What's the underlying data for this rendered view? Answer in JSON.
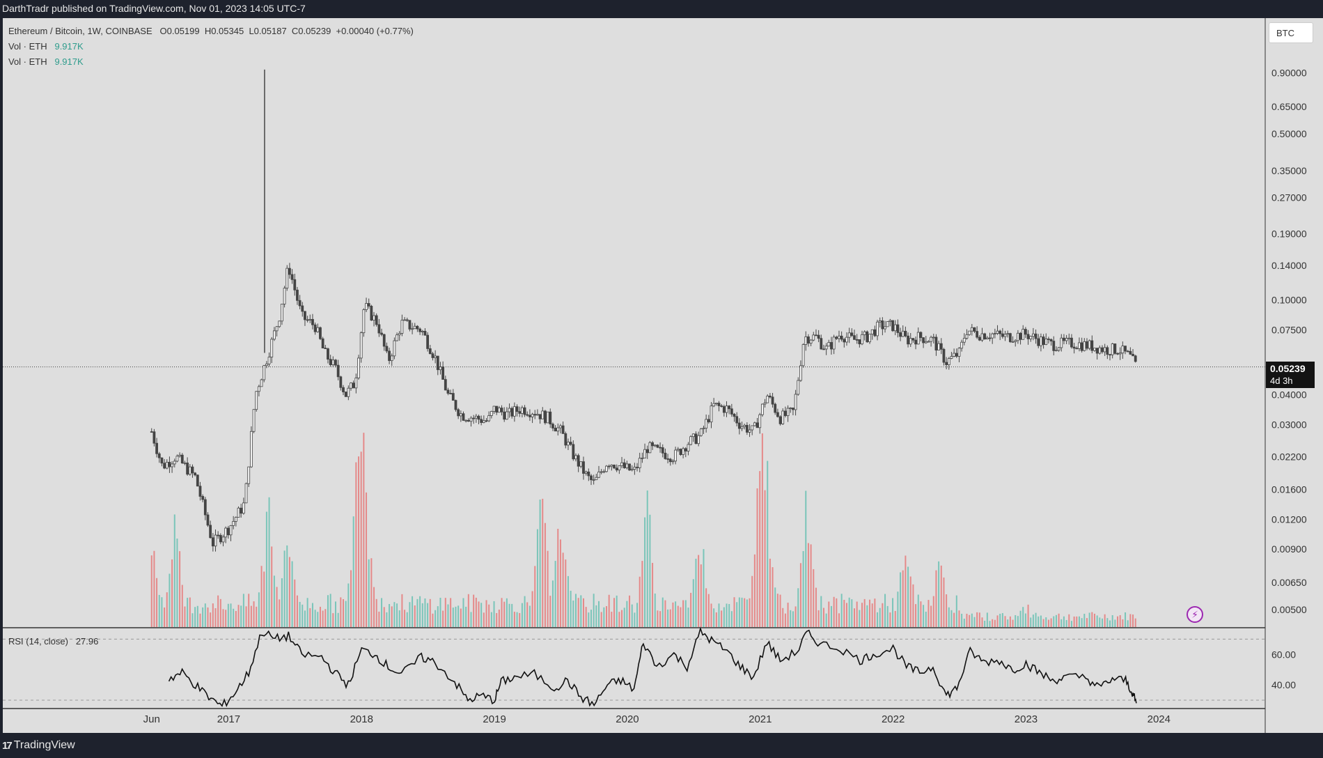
{
  "header": {
    "publisher_text": "DarthTradr published on TradingView.com, Nov 01, 2023 14:05 UTC-7"
  },
  "footer": {
    "brand_logo": "17",
    "brand_name": "TradingView"
  },
  "legend": {
    "symbol_line": "Ethereum / Bitcoin, 1W, COINBASE",
    "ohlc": {
      "open": "O0.05199",
      "high": "H0.05345",
      "low": "L0.05187",
      "close": "C0.05239",
      "change": "+0.00040 (+0.77%)"
    },
    "vol_label": "Vol · ETH",
    "vol_value": "9.917K",
    "vol2_label": "Vol · ETH",
    "vol2_value": "9.917K",
    "rsi_label": "RSI (14, close)",
    "rsi_value": "27.96"
  },
  "price_scale_button": "BTC",
  "last_price": {
    "value": "0.05239",
    "countdown": "4d 3h"
  },
  "colors": {
    "chart_bg": "#dedede",
    "candle": "#444444",
    "vol_up": "#6fc2b5",
    "vol_down": "#e57f7f",
    "rsi_line": "#111111",
    "frame": "#1e222d",
    "alert": "#9c27b0"
  },
  "chart_data": [
    {
      "type": "candlestick",
      "title": "Ethereum / Bitcoin, 1W, COINBASE",
      "x_axis_labels": [
        "Jun",
        "2017",
        "2018",
        "2019",
        "2020",
        "2021",
        "2022",
        "2023",
        "2024"
      ],
      "y_scale": "log",
      "y_tick_labels": [
        "0.90000",
        "0.65000",
        "0.50000",
        "0.35000",
        "0.27000",
        "0.19000",
        "0.14000",
        "0.10000",
        "0.07500",
        "0.05239",
        "0.04000",
        "0.03000",
        "0.02200",
        "0.01600",
        "0.01200",
        "0.00900",
        "0.00650",
        "0.00500"
      ],
      "ylim": [
        0.0042,
        1.25
      ],
      "xlim": [
        2015.3,
        2024.8
      ],
      "series": [
        {
          "name": "Ethereum / Bitcoin",
          "points": [
            [
              2016.42,
              0.028
            ],
            [
              2016.5,
              0.02
            ],
            [
              2016.6,
              0.022
            ],
            [
              2016.75,
              0.018
            ],
            [
              2016.88,
              0.0095
            ],
            [
              2017.0,
              0.011
            ],
            [
              2017.12,
              0.014
            ],
            [
              2017.2,
              0.04
            ],
            [
              2017.3,
              0.06
            ],
            [
              2017.38,
              0.085
            ],
            [
              2017.45,
              0.14
            ],
            [
              2017.55,
              0.085
            ],
            [
              2017.65,
              0.078
            ],
            [
              2017.72,
              0.06
            ],
            [
              2017.8,
              0.052
            ],
            [
              2017.88,
              0.04
            ],
            [
              2017.95,
              0.045
            ],
            [
              2018.02,
              0.095
            ],
            [
              2018.12,
              0.08
            ],
            [
              2018.2,
              0.055
            ],
            [
              2018.3,
              0.08
            ],
            [
              2018.45,
              0.075
            ],
            [
              2018.55,
              0.058
            ],
            [
              2018.65,
              0.04
            ],
            [
              2018.75,
              0.033
            ],
            [
              2018.85,
              0.032
            ],
            [
              2018.95,
              0.031
            ],
            [
              2019.0,
              0.035
            ],
            [
              2019.1,
              0.033
            ],
            [
              2019.2,
              0.035
            ],
            [
              2019.3,
              0.034
            ],
            [
              2019.4,
              0.032
            ],
            [
              2019.5,
              0.028
            ],
            [
              2019.6,
              0.022
            ],
            [
              2019.7,
              0.018
            ],
            [
              2019.75,
              0.017
            ],
            [
              2019.85,
              0.021
            ],
            [
              2019.95,
              0.02
            ],
            [
              2020.05,
              0.019
            ],
            [
              2020.15,
              0.024
            ],
            [
              2020.25,
              0.023
            ],
            [
              2020.35,
              0.022
            ],
            [
              2020.45,
              0.025
            ],
            [
              2020.55,
              0.027
            ],
            [
              2020.65,
              0.036
            ],
            [
              2020.75,
              0.035
            ],
            [
              2020.85,
              0.03
            ],
            [
              2020.95,
              0.028
            ],
            [
              2021.05,
              0.04
            ],
            [
              2021.15,
              0.032
            ],
            [
              2021.25,
              0.034
            ],
            [
              2021.33,
              0.07
            ],
            [
              2021.42,
              0.07
            ],
            [
              2021.5,
              0.062
            ],
            [
              2021.6,
              0.072
            ],
            [
              2021.7,
              0.068
            ],
            [
              2021.8,
              0.07
            ],
            [
              2021.9,
              0.078
            ],
            [
              2022.0,
              0.078
            ],
            [
              2022.1,
              0.068
            ],
            [
              2022.2,
              0.07
            ],
            [
              2022.3,
              0.068
            ],
            [
              2022.4,
              0.055
            ],
            [
              2022.5,
              0.06
            ],
            [
              2022.55,
              0.075
            ],
            [
              2022.65,
              0.072
            ],
            [
              2022.75,
              0.072
            ],
            [
              2022.85,
              0.07
            ],
            [
              2023.0,
              0.072
            ],
            [
              2023.1,
              0.068
            ],
            [
              2023.2,
              0.065
            ],
            [
              2023.35,
              0.066
            ],
            [
              2023.5,
              0.064
            ],
            [
              2023.6,
              0.062
            ],
            [
              2023.7,
              0.062
            ],
            [
              2023.78,
              0.058
            ],
            [
              2023.83,
              0.0524
            ]
          ]
        }
      ],
      "annotations": [
        "0.05239",
        "4d 3h"
      ]
    },
    {
      "type": "bar",
      "title": "Vol · ETH",
      "series": [
        {
          "name": "Vol · ETH",
          "x": [
            2016.42,
            2016.6,
            2017.3,
            2017.45,
            2017.97,
            2018.02,
            2019.35,
            2019.5,
            2020.15,
            2020.55,
            2021.0,
            2021.05,
            2021.35,
            2022.1,
            2022.35,
            2023.0
          ],
          "values": [
            60,
            80,
            90,
            70,
            110,
            130,
            100,
            80,
            90,
            70,
            120,
            90,
            100,
            40,
            30,
            20
          ]
        }
      ]
    },
    {
      "type": "line",
      "title": "RSI (14, close)",
      "y_tick_labels": [
        "60.00",
        "40.00"
      ],
      "ylim": [
        25,
        77
      ],
      "series": [
        {
          "name": "RSI (14, close)",
          "points": [
            [
              2016.55,
              44
            ],
            [
              2016.65,
              48
            ],
            [
              2016.75,
              40
            ],
            [
              2016.85,
              32
            ],
            [
              2016.95,
              26
            ],
            [
              2017.05,
              35
            ],
            [
              2017.15,
              48
            ],
            [
              2017.25,
              75
            ],
            [
              2017.35,
              70
            ],
            [
              2017.45,
              72
            ],
            [
              2017.55,
              60
            ],
            [
              2017.7,
              58
            ],
            [
              2017.8,
              48
            ],
            [
              2017.9,
              40
            ],
            [
              2018.0,
              63
            ],
            [
              2018.1,
              60
            ],
            [
              2018.2,
              52
            ],
            [
              2018.3,
              47
            ],
            [
              2018.45,
              58
            ],
            [
              2018.55,
              55
            ],
            [
              2018.7,
              42
            ],
            [
              2018.8,
              30
            ],
            [
              2018.9,
              33
            ],
            [
              2019.0,
              30
            ],
            [
              2019.05,
              42
            ],
            [
              2019.15,
              45
            ],
            [
              2019.3,
              47
            ],
            [
              2019.45,
              38
            ],
            [
              2019.55,
              43
            ],
            [
              2019.65,
              32
            ],
            [
              2019.75,
              27
            ],
            [
              2019.85,
              40
            ],
            [
              2019.95,
              43
            ],
            [
              2020.05,
              37
            ],
            [
              2020.12,
              68
            ],
            [
              2020.22,
              52
            ],
            [
              2020.35,
              60
            ],
            [
              2020.45,
              52
            ],
            [
              2020.55,
              75
            ],
            [
              2020.65,
              68
            ],
            [
              2020.75,
              62
            ],
            [
              2020.85,
              52
            ],
            [
              2020.95,
              45
            ],
            [
              2021.05,
              68
            ],
            [
              2021.15,
              56
            ],
            [
              2021.28,
              62
            ],
            [
              2021.35,
              74
            ],
            [
              2021.45,
              67
            ],
            [
              2021.6,
              64
            ],
            [
              2021.75,
              56
            ],
            [
              2021.85,
              60
            ],
            [
              2022.0,
              64
            ],
            [
              2022.1,
              52
            ],
            [
              2022.2,
              48
            ],
            [
              2022.3,
              52
            ],
            [
              2022.4,
              33
            ],
            [
              2022.48,
              38
            ],
            [
              2022.58,
              62
            ],
            [
              2022.68,
              55
            ],
            [
              2022.8,
              56
            ],
            [
              2022.9,
              50
            ],
            [
              2023.0,
              54
            ],
            [
              2023.1,
              48
            ],
            [
              2023.2,
              43
            ],
            [
              2023.3,
              45
            ],
            [
              2023.45,
              45
            ],
            [
              2023.55,
              38
            ],
            [
              2023.65,
              44
            ],
            [
              2023.75,
              43
            ],
            [
              2023.8,
              35
            ],
            [
              2023.83,
              28
            ]
          ]
        }
      ]
    }
  ]
}
